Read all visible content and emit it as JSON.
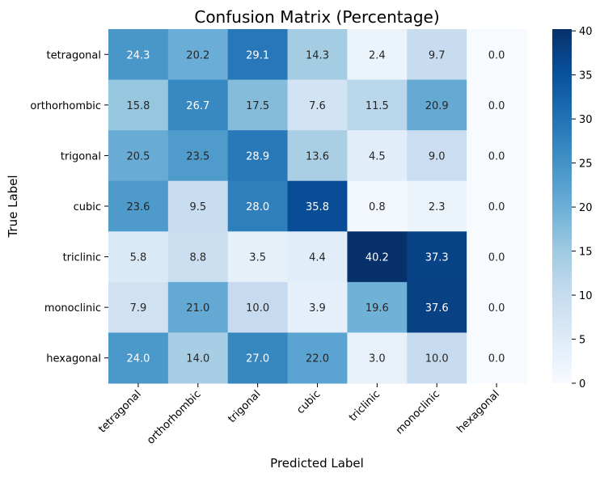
{
  "chart_data": {
    "type": "heatmap",
    "title": "Confusion Matrix (Percentage)",
    "xlabel": "Predicted Label",
    "ylabel": "True Label",
    "x_categories": [
      "tetragonal",
      "orthorhombic",
      "trigonal",
      "cubic",
      "triclinic",
      "monoclinic",
      "hexagonal"
    ],
    "y_categories": [
      "tetragonal",
      "orthorhombic",
      "trigonal",
      "cubic",
      "triclinic",
      "monoclinic",
      "hexagonal"
    ],
    "values": [
      [
        24.3,
        20.2,
        29.1,
        14.3,
        2.4,
        9.7,
        0.0
      ],
      [
        15.8,
        26.7,
        17.5,
        7.6,
        11.5,
        20.9,
        0.0
      ],
      [
        20.5,
        23.5,
        28.9,
        13.6,
        4.5,
        9.0,
        0.0
      ],
      [
        23.6,
        9.5,
        28.0,
        35.8,
        0.8,
        2.3,
        0.0
      ],
      [
        5.8,
        8.8,
        3.5,
        4.4,
        40.2,
        37.3,
        0.0
      ],
      [
        7.9,
        21.0,
        10.0,
        3.9,
        19.6,
        37.6,
        0.0
      ],
      [
        24.0,
        14.0,
        27.0,
        22.0,
        3.0,
        10.0,
        0.0
      ]
    ],
    "colormap": "Blues",
    "vmin": 0,
    "vmax": 40.2,
    "colorbar_ticks": [
      0,
      5,
      10,
      15,
      20,
      25,
      30,
      35,
      40
    ],
    "value_format": "0.0"
  }
}
